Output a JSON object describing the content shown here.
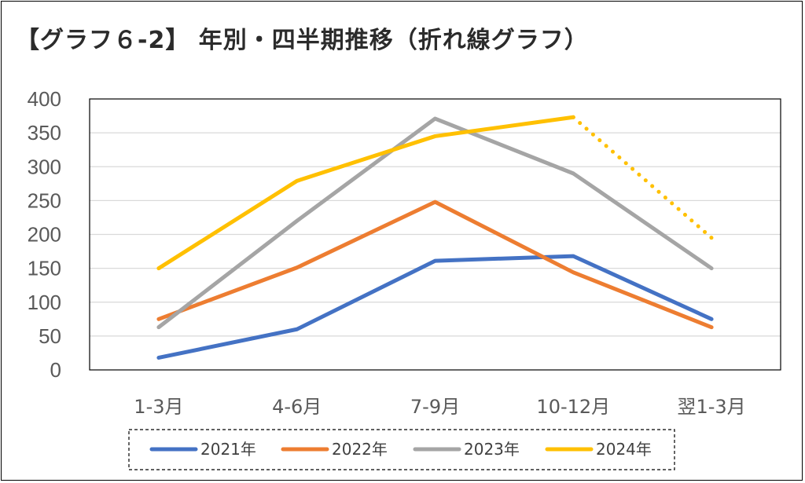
{
  "title": "【グラフ６-2】 年別・四半期推移（折れ線グラフ）",
  "chart_data": {
    "type": "line",
    "title": "【グラフ６-2】 年別・四半期推移（折れ線グラフ）",
    "categories": [
      "1-3月",
      "4-6月",
      "7-9月",
      "10-12月",
      "翌1-3月"
    ],
    "ylim": [
      0,
      400
    ],
    "yticks": [
      0,
      50,
      100,
      150,
      200,
      250,
      300,
      350,
      400
    ],
    "grid": true,
    "legend_position": "bottom",
    "series": [
      {
        "name": "2021年",
        "color": "#4472C4",
        "values": [
          18,
          60,
          161,
          168,
          75
        ],
        "dashed_last_segment": false
      },
      {
        "name": "2022年",
        "color": "#ED7D31",
        "values": [
          75,
          151,
          248,
          144,
          63
        ],
        "dashed_last_segment": false
      },
      {
        "name": "2023年",
        "color": "#A5A5A5",
        "values": [
          63,
          220,
          371,
          290,
          150
        ],
        "dashed_last_segment": false
      },
      {
        "name": "2024年",
        "color": "#FFC000",
        "values": [
          150,
          279,
          345,
          373,
          195
        ],
        "dashed_last_segment": true
      }
    ]
  }
}
